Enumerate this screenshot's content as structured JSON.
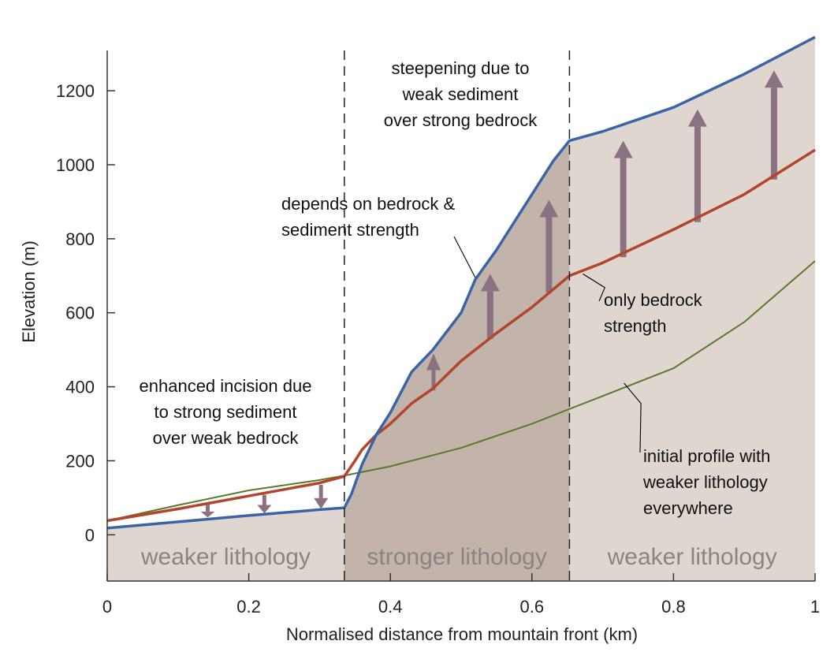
{
  "chart_data": {
    "type": "line",
    "xlabel": "Normalised distance from mountain front (km)",
    "ylabel": "Elevation (m)",
    "xlim": [
      0,
      1
    ],
    "ylim": [
      -125,
      1360
    ],
    "xticks": [
      "0",
      "0.2",
      "0.4",
      "0.6",
      "0.8",
      "1"
    ],
    "yticks": [
      "0",
      "200",
      "400",
      "600",
      "800",
      "1000",
      "1200"
    ],
    "boundaries": [
      0.335,
      0.653
    ],
    "regions": [
      {
        "label": "weaker lithology",
        "x_start": 0,
        "x_end": 0.335
      },
      {
        "label": "stronger lithology",
        "x_start": 0.335,
        "x_end": 0.653
      },
      {
        "label": "weaker lithology",
        "x_start": 0.653,
        "x_end": 1
      }
    ],
    "series": [
      {
        "key": "blue",
        "color": "#3b64a8",
        "x": [
          0,
          0.1,
          0.2,
          0.3,
          0.335,
          0.345,
          0.36,
          0.38,
          0.4,
          0.43,
          0.46,
          0.5,
          0.52,
          0.55,
          0.6,
          0.63,
          0.653,
          0.7,
          0.8,
          0.9,
          1.0
        ],
        "y": [
          18,
          35,
          52,
          68,
          73,
          110,
          190,
          270,
          330,
          440,
          500,
          600,
          690,
          770,
          920,
          1010,
          1065,
          1090,
          1155,
          1245,
          1345
        ]
      },
      {
        "key": "red",
        "color": "#b2452c",
        "x": [
          0,
          0.1,
          0.2,
          0.3,
          0.335,
          0.35,
          0.36,
          0.38,
          0.4,
          0.43,
          0.46,
          0.5,
          0.55,
          0.6,
          0.653,
          0.7,
          0.8,
          0.9,
          1.0
        ],
        "y": [
          38,
          70,
          105,
          140,
          158,
          200,
          230,
          270,
          300,
          355,
          395,
          470,
          545,
          615,
          700,
          735,
          825,
          920,
          1040
        ]
      },
      {
        "key": "green",
        "color": "#5a7a2a",
        "x": [
          0,
          0.1,
          0.2,
          0.3,
          0.335,
          0.4,
          0.5,
          0.6,
          0.653,
          0.7,
          0.8,
          0.9,
          1.0
        ],
        "y": [
          38,
          80,
          120,
          148,
          160,
          185,
          235,
          300,
          340,
          375,
          450,
          575,
          740
        ]
      }
    ],
    "arrows": [
      {
        "x": 0.142,
        "from": 82,
        "to": 47
      },
      {
        "x": 0.222,
        "from": 108,
        "to": 58
      },
      {
        "x": 0.302,
        "from": 135,
        "to": 70
      },
      {
        "x": 0.461,
        "from": 390,
        "to": 490
      },
      {
        "x": 0.541,
        "from": 530,
        "to": 705
      },
      {
        "x": 0.624,
        "from": 655,
        "to": 905
      },
      {
        "x": 0.729,
        "from": 750,
        "to": 1065
      },
      {
        "x": 0.834,
        "from": 845,
        "to": 1150
      },
      {
        "x": 0.942,
        "from": 960,
        "to": 1255
      }
    ]
  },
  "annotations": {
    "enhanced": [
      "enhanced incision due",
      "to strong sediment",
      "over weak bedrock"
    ],
    "steepening": [
      "steepening due to",
      "weak sediment",
      "over strong bedrock"
    ],
    "depends": [
      "depends on bedrock &",
      "sediment strength"
    ],
    "only_bedrock": [
      "only bedrock",
      "strength"
    ],
    "initial": [
      "initial profile with",
      "weaker lithology",
      "everywhere"
    ]
  },
  "colors": {
    "fill_weak": "#e0d6d0",
    "fill_strong": "#c2b4aa",
    "arrow": "#8a7282",
    "axis": "#333333"
  }
}
